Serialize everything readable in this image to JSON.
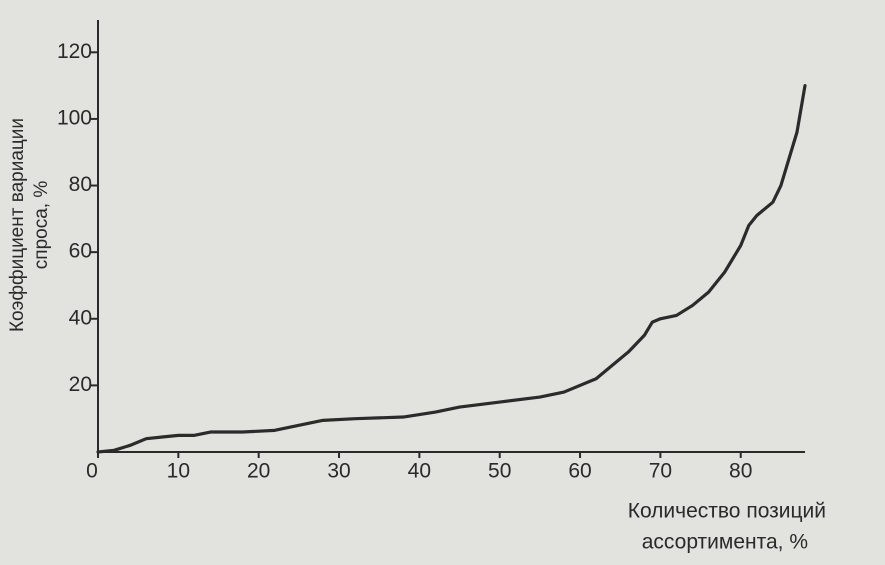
{
  "chart_data": {
    "type": "line",
    "x_label": [
      "Количество позиций",
      "ассортимента, %"
    ],
    "y_label": [
      "Коэффициент вариации",
      "спроса, %"
    ],
    "x": [
      0,
      2,
      4,
      6,
      8,
      10,
      12,
      14,
      18,
      22,
      25,
      28,
      32,
      38,
      42,
      45,
      50,
      55,
      58,
      62,
      64,
      66,
      68,
      69,
      70,
      72,
      74,
      76,
      78,
      80,
      81,
      82,
      84,
      85,
      86,
      87,
      88
    ],
    "series": [
      {
        "color": "#2b2b2b",
        "values": [
          0,
          0.5,
          2,
          4,
          4.5,
          5,
          5,
          6,
          6,
          6.5,
          8,
          9.5,
          10,
          10.5,
          12,
          13.5,
          15,
          16.5,
          18,
          22,
          26,
          30,
          35,
          39,
          40,
          41,
          44,
          48,
          54,
          62,
          68,
          71,
          75,
          80,
          88,
          96,
          110
        ]
      }
    ],
    "xlim": [
      0,
      88
    ],
    "ylim": [
      0,
      130
    ],
    "xticks": [
      0,
      10,
      20,
      30,
      40,
      50,
      60,
      70,
      80
    ],
    "yticks": [
      20,
      40,
      60,
      80,
      100,
      120
    ],
    "grid": false
  }
}
